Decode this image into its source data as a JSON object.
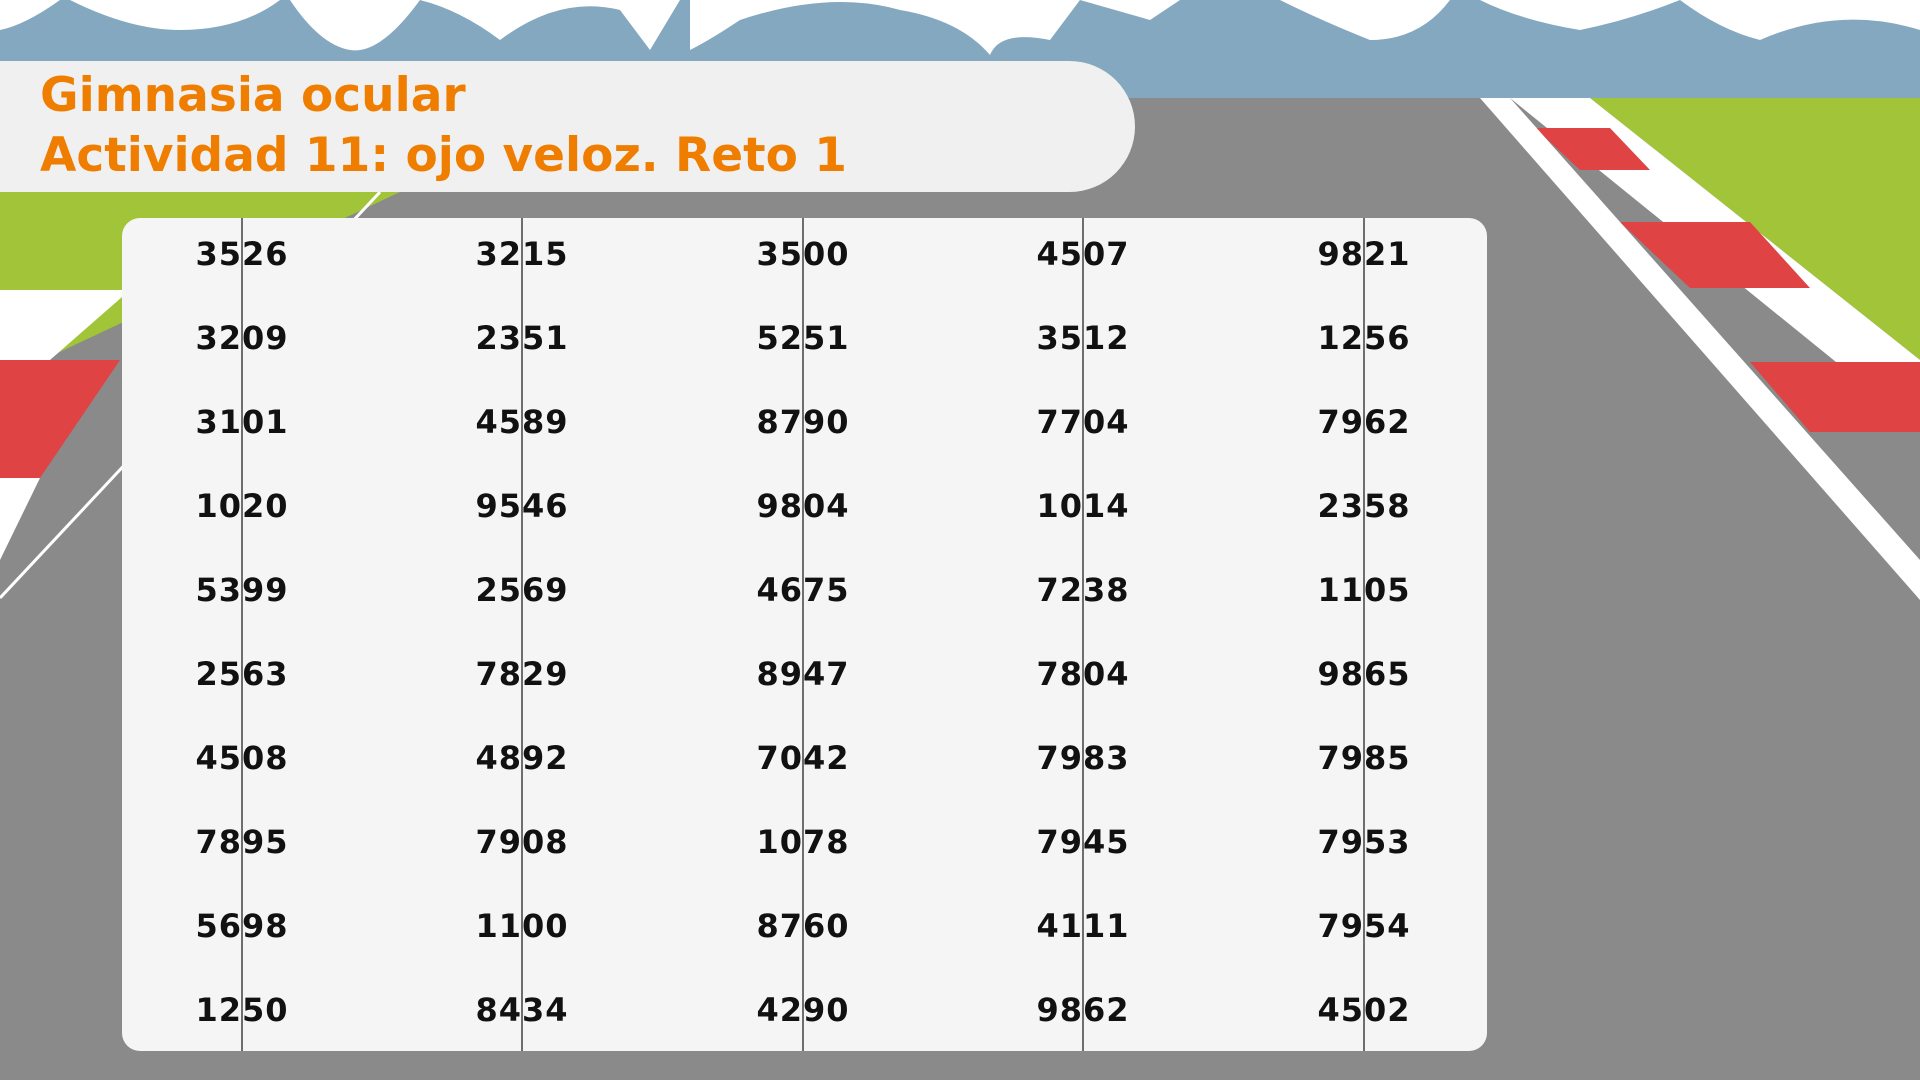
{
  "title": {
    "line1": "Gimnasia ocular",
    "line2": "Actividad 11: ojo veloz. Reto 1"
  },
  "colors": {
    "accent": "#ef7d00",
    "road": "#8a8a8a",
    "sky": "#84a8c0",
    "grass": "#a2c438",
    "curb_red": "#e04343",
    "panel": "#f5f5f5"
  },
  "grid": {
    "rows": [
      [
        "3526",
        "3215",
        "3500",
        "4507",
        "9821"
      ],
      [
        "3209",
        "2351",
        "5251",
        "3512",
        "1256"
      ],
      [
        "3101",
        "4589",
        "8790",
        "7704",
        "7962"
      ],
      [
        "1020",
        "9546",
        "9804",
        "1014",
        "2358"
      ],
      [
        "5399",
        "2569",
        "4675",
        "7238",
        "1105"
      ],
      [
        "2563",
        "7829",
        "8947",
        "7804",
        "9865"
      ],
      [
        "4508",
        "4892",
        "7042",
        "7983",
        "7985"
      ],
      [
        "7895",
        "7908",
        "1078",
        "7945",
        "7953"
      ],
      [
        "5698",
        "1100",
        "8760",
        "4111",
        "7954"
      ],
      [
        "1250",
        "8434",
        "4290",
        "9862",
        "4502"
      ]
    ]
  }
}
